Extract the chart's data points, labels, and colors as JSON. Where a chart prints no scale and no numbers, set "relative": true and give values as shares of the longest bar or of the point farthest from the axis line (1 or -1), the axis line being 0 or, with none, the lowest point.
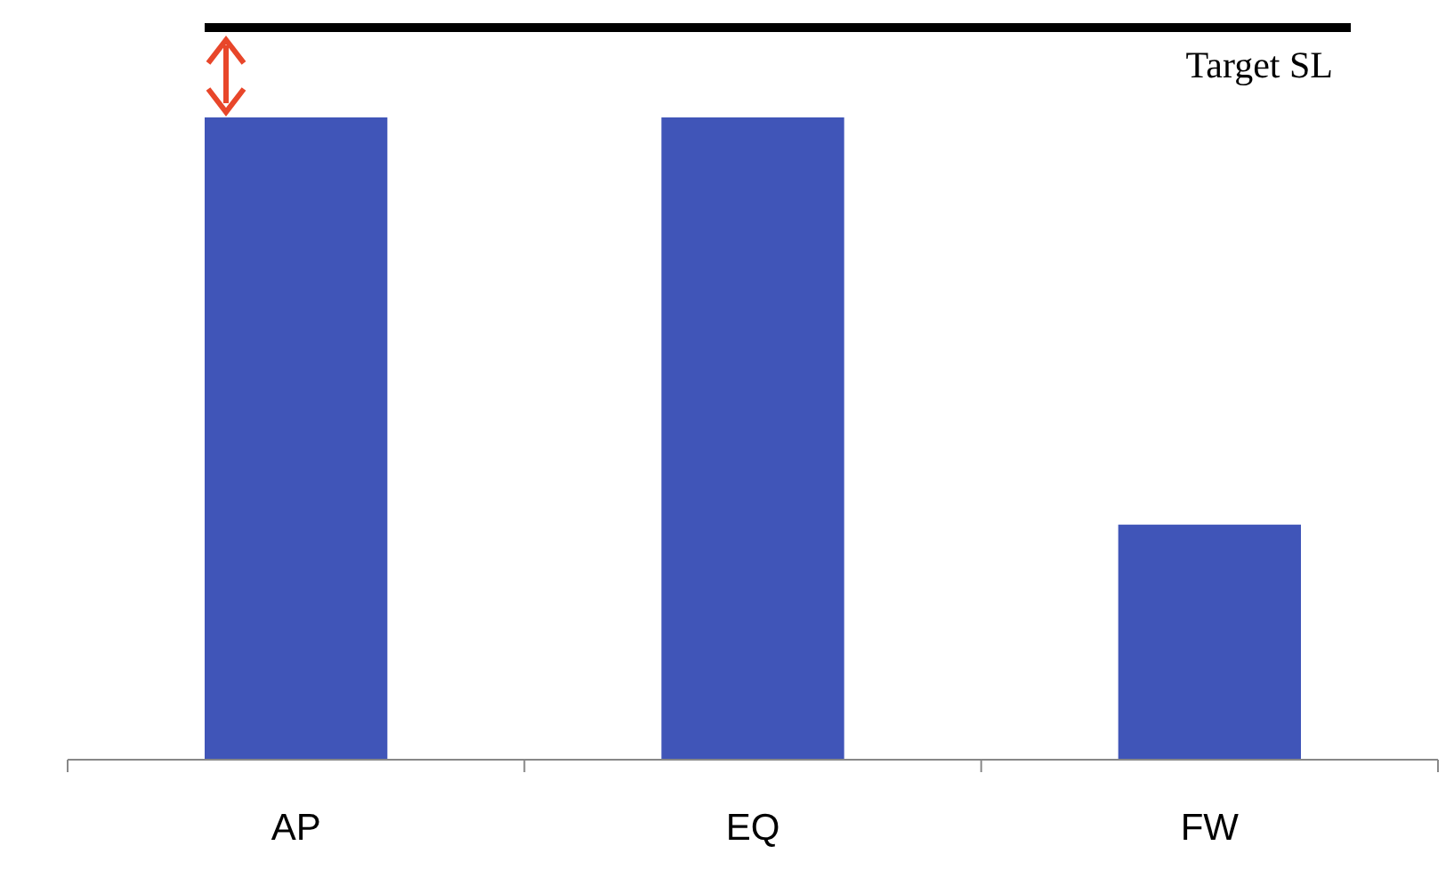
{
  "chart_data": {
    "type": "bar",
    "relative": true,
    "categories": [
      "AP",
      "EQ",
      "FW"
    ],
    "values": [
      1,
      1,
      0.366
    ],
    "color": "#4055b8",
    "ref_lines": [
      {
        "axis": "y",
        "value": 1.14,
        "label": "Target SL",
        "color": "#000000"
      }
    ]
  }
}
